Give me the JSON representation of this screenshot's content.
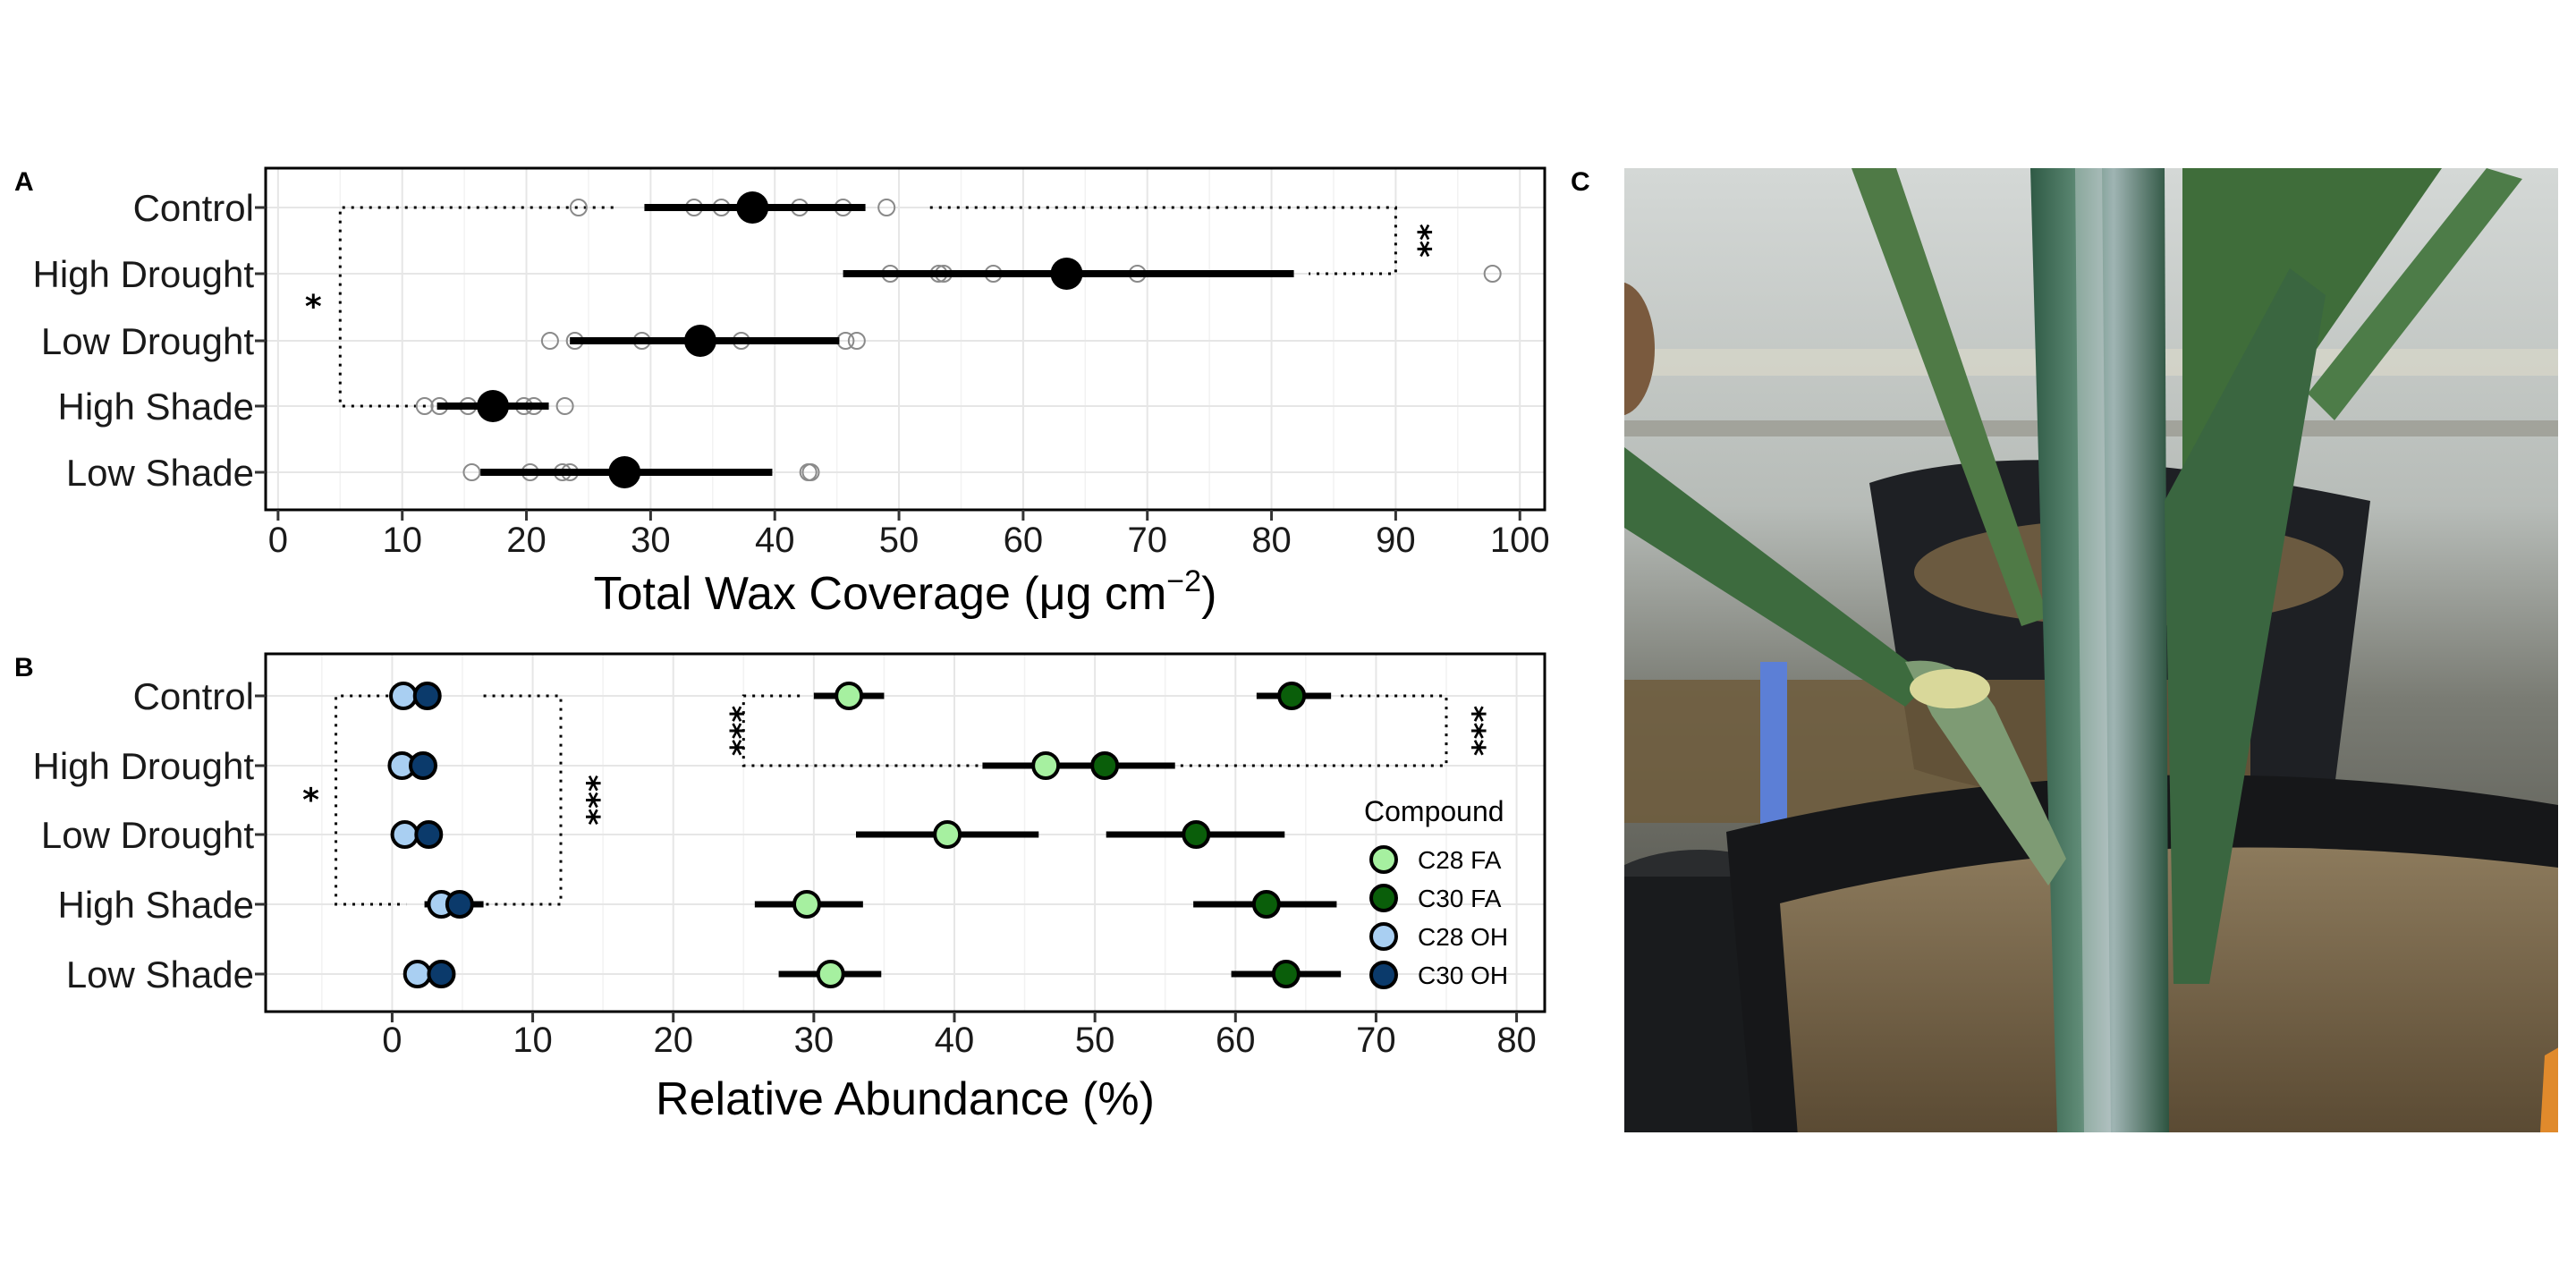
{
  "panels": {
    "a": {
      "letter": "A"
    },
    "b": {
      "letter": "B"
    },
    "c": {
      "letter": "C"
    }
  },
  "photo": {
    "description_name": "wheat-stem-photo",
    "colors": {
      "background_wall": "#b9c0c2",
      "stem": "#3f6a4e",
      "wax_bloom": "#a7b8bd",
      "pot": "#1d1f22",
      "soil": "#6e5a3c",
      "leaf": "#4c7a45"
    }
  },
  "chart_data": [
    {
      "id": "A",
      "type": "scatter",
      "title": "",
      "categories": [
        "Control",
        "High Drought",
        "Low Drought",
        "High Shade",
        "Low Shade"
      ],
      "xlabel_main": "Total Wax Coverage (μg cm",
      "xlabel_sup": "−2",
      "xlabel_end": ")",
      "ylabel": "",
      "xlim": [
        -1,
        102
      ],
      "xticks": [
        0,
        10,
        20,
        30,
        40,
        50,
        60,
        70,
        80,
        90,
        100
      ],
      "grid": true,
      "colors": {
        "mean": "#000000",
        "raw_point_stroke": "#8a8a8a"
      },
      "means": [
        38.2,
        63.5,
        34.0,
        17.3,
        27.9
      ],
      "intervals": [
        [
          29.5,
          47.3
        ],
        [
          45.5,
          81.8
        ],
        [
          23.5,
          45.2
        ],
        [
          12.8,
          21.8
        ],
        [
          16.3,
          39.8
        ]
      ],
      "raw_points": [
        [
          24.2,
          33.5,
          35.7,
          42.0,
          45.5,
          49.0
        ],
        [
          49.3,
          53.2,
          53.6,
          57.6,
          69.2,
          97.8
        ],
        [
          21.9,
          23.9,
          29.3,
          37.3,
          45.7,
          46.6
        ],
        [
          11.8,
          13.0,
          15.3,
          19.8,
          20.6,
          23.1
        ],
        [
          15.6,
          20.3,
          22.9,
          23.5,
          42.7,
          42.9
        ]
      ],
      "significance": [
        {
          "label": "**",
          "from_category": "Control",
          "to_category": "High Drought",
          "x_value": 90,
          "side": "right"
        },
        {
          "label": "*",
          "from_category": "Control",
          "to_category": "High Shade",
          "x_value": 5,
          "side": "left"
        }
      ]
    },
    {
      "id": "B",
      "type": "scatter",
      "title": "",
      "categories": [
        "Control",
        "High Drought",
        "Low Drought",
        "High Shade",
        "Low Shade"
      ],
      "xlabel": "Relative Abundance (%)",
      "ylabel": "",
      "xlim": [
        -9,
        82
      ],
      "xticks": [
        0,
        10,
        20,
        30,
        40,
        50,
        60,
        70,
        80
      ],
      "grid": true,
      "legend": {
        "title": "Compound",
        "placement": "right"
      },
      "series": [
        {
          "name": "C28 FA",
          "color": "#a6f0a0",
          "means": [
            32.5,
            46.5,
            39.5,
            29.5,
            31.2
          ],
          "intervals": [
            [
              30.0,
              35.0
            ],
            [
              42.0,
              51.0
            ],
            [
              33.0,
              46.0
            ],
            [
              25.8,
              33.5
            ],
            [
              27.5,
              34.8
            ]
          ]
        },
        {
          "name": "C30 FA",
          "color": "#0a5e0a",
          "means": [
            64.0,
            50.7,
            57.2,
            62.2,
            63.6
          ],
          "intervals": [
            [
              61.5,
              66.8
            ],
            [
              45.5,
              55.7
            ],
            [
              50.8,
              63.5
            ],
            [
              57.0,
              67.2
            ],
            [
              59.7,
              67.5
            ]
          ]
        },
        {
          "name": "C28 OH",
          "color": "#a9cff2",
          "means": [
            0.8,
            0.7,
            0.9,
            3.5,
            1.8
          ],
          "intervals": [
            [
              0.2,
              1.4
            ],
            [
              0.2,
              1.2
            ],
            [
              0.3,
              1.5
            ],
            [
              2.3,
              4.8
            ],
            [
              1.2,
              2.5
            ]
          ]
        },
        {
          "name": "C30 OH",
          "color": "#0b3a6b",
          "means": [
            2.5,
            2.2,
            2.6,
            4.8,
            3.5
          ],
          "intervals": [
            [
              1.6,
              3.3
            ],
            [
              1.4,
              3.0
            ],
            [
              1.8,
              3.4
            ],
            [
              2.8,
              6.5
            ],
            [
              2.5,
              4.5
            ]
          ]
        }
      ],
      "significance": [
        {
          "label": "*",
          "from_category": "Control",
          "to_category": "High Shade",
          "x_value": -4,
          "side": "left"
        },
        {
          "label": "***",
          "from_category": "Control",
          "to_category": "High Shade",
          "x_value": 12,
          "side": "right"
        },
        {
          "label": "***",
          "from_category": "Control",
          "to_category": "High Drought",
          "x_value": 25,
          "side": "left"
        },
        {
          "label": "***",
          "from_category": "Control",
          "to_category": "High Drought",
          "x_value": 75,
          "side": "right"
        }
      ]
    }
  ]
}
